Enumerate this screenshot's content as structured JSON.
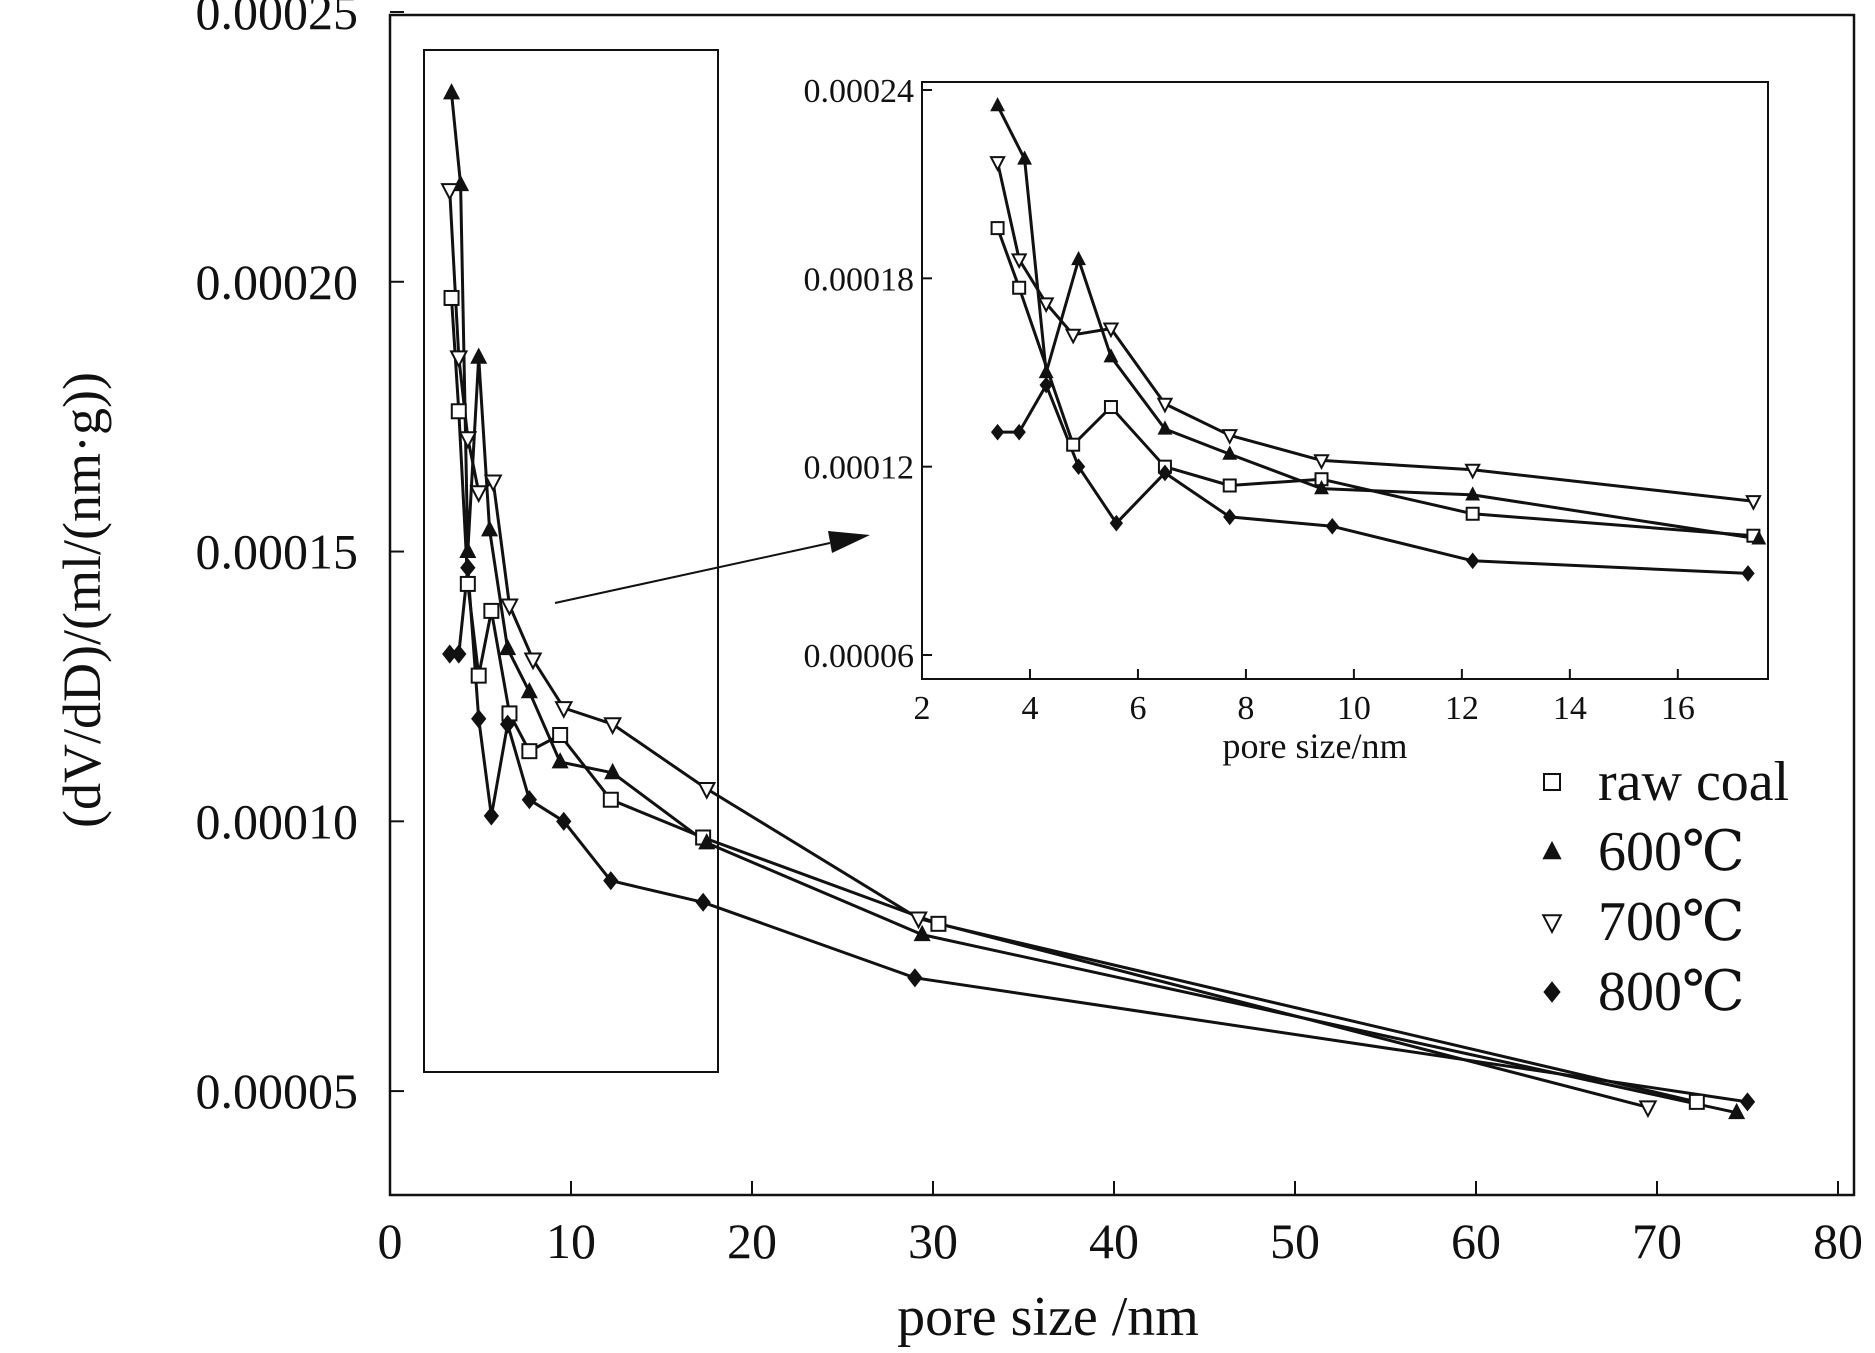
{
  "chart_data": [
    {
      "type": "line",
      "xlabel": "pore size /nm",
      "ylabel": "(dV/dD)/(ml/(nm·g))",
      "xlim": [
        0,
        80
      ],
      "ylim": [
        3e-05,
        0.00025
      ],
      "x_ticks": [
        "0",
        "10",
        "20",
        "30",
        "40",
        "50",
        "60",
        "70",
        "80"
      ],
      "y_ticks": [
        "0.00005",
        "0.00010",
        "0.00015",
        "0.00020",
        "0.00025"
      ],
      "legend_position": "right",
      "series": [
        {
          "name": "raw coal",
          "marker": "open-square",
          "color": "#111111",
          "x": [
            3.4,
            3.8,
            4.3,
            4.9,
            5.6,
            6.6,
            7.7,
            9.4,
            12.2,
            17.3,
            30.3,
            72.2
          ],
          "y": [
            0.000197,
            0.000176,
            0.000144,
            0.000127,
            0.000139,
            0.00012,
            0.000113,
            0.000116,
            0.000104,
            9.7e-05,
            8.1e-05,
            4.8e-05
          ]
        },
        {
          "name": "600℃",
          "marker": "filled-triangle-up",
          "color": "#111111",
          "x": [
            3.4,
            3.9,
            4.3,
            4.9,
            5.5,
            6.5,
            7.7,
            9.4,
            12.3,
            17.5,
            29.4,
            74.4
          ],
          "y": [
            0.000235,
            0.000218,
            0.00015,
            0.000186,
            0.000154,
            0.000132,
            0.000124,
            0.000111,
            0.000109,
            9.6e-05,
            7.9e-05,
            4.6e-05
          ]
        },
        {
          "name": "700℃",
          "marker": "open-triangle-down",
          "color": "#111111",
          "x": [
            3.3,
            3.8,
            4.3,
            4.9,
            5.7,
            6.6,
            7.9,
            9.6,
            12.3,
            17.5,
            29.2,
            69.5
          ],
          "y": [
            0.000217,
            0.000186,
            0.000171,
            0.000161,
            0.000163,
            0.00014,
            0.00013,
            0.000121,
            0.000118,
            0.000106,
            8.2e-05,
            4.7e-05
          ]
        },
        {
          "name": "800℃",
          "marker": "filled-diamond",
          "color": "#111111",
          "x": [
            3.3,
            3.8,
            4.3,
            4.9,
            5.6,
            6.5,
            7.7,
            9.6,
            12.2,
            17.3,
            29.0,
            75.0
          ],
          "y": [
            0.000131,
            0.000131,
            0.000147,
            0.000119,
            0.000101,
            0.000118,
            0.000104,
            0.0001,
            8.9e-05,
            8.5e-05,
            7.1e-05,
            4.8e-05
          ]
        }
      ]
    },
    {
      "type": "line",
      "xlabel": "pore size/nm",
      "ylabel": "",
      "xlim": [
        2,
        17.8
      ],
      "ylim": [
        6e-05,
        0.00024
      ],
      "x_ticks": [
        "2",
        "4",
        "6",
        "8",
        "10",
        "12",
        "14",
        "16"
      ],
      "y_ticks": [
        "0.00006",
        "0.00012",
        "0.00018",
        "0.00024"
      ],
      "series": [
        {
          "name": "raw coal",
          "marker": "open-square",
          "x": [
            3.4,
            3.8,
            4.8,
            5.5,
            6.5,
            7.7,
            9.4,
            12.2,
            17.4
          ],
          "y": [
            0.000196,
            0.000177,
            0.000127,
            0.000139,
            0.00012,
            0.000114,
            0.000116,
            0.000105,
            9.8e-05
          ]
        },
        {
          "name": "600℃",
          "marker": "filled-triangle-up",
          "x": [
            3.4,
            3.9,
            4.3,
            4.9,
            5.5,
            6.5,
            7.7,
            9.4,
            12.2,
            17.5
          ],
          "y": [
            0.000235,
            0.000218,
            0.00015,
            0.000186,
            0.000155,
            0.000132,
            0.000124,
            0.000113,
            0.000111,
            9.7e-05
          ]
        },
        {
          "name": "700℃",
          "marker": "open-triangle-down",
          "x": [
            3.4,
            3.8,
            4.3,
            4.8,
            5.5,
            6.5,
            7.7,
            9.4,
            12.2,
            17.4
          ],
          "y": [
            0.000217,
            0.000186,
            0.000172,
            0.000162,
            0.000164,
            0.00014,
            0.00013,
            0.000122,
            0.000119,
            0.000109
          ]
        },
        {
          "name": "800℃",
          "marker": "filled-diamond",
          "x": [
            3.4,
            3.8,
            4.3,
            4.9,
            5.6,
            6.5,
            7.7,
            9.6,
            12.2,
            17.3
          ],
          "y": [
            0.000131,
            0.000131,
            0.000146,
            0.00012,
            0.000102,
            0.000118,
            0.000104,
            0.000101,
            9e-05,
            8.6e-05
          ]
        }
      ]
    }
  ]
}
